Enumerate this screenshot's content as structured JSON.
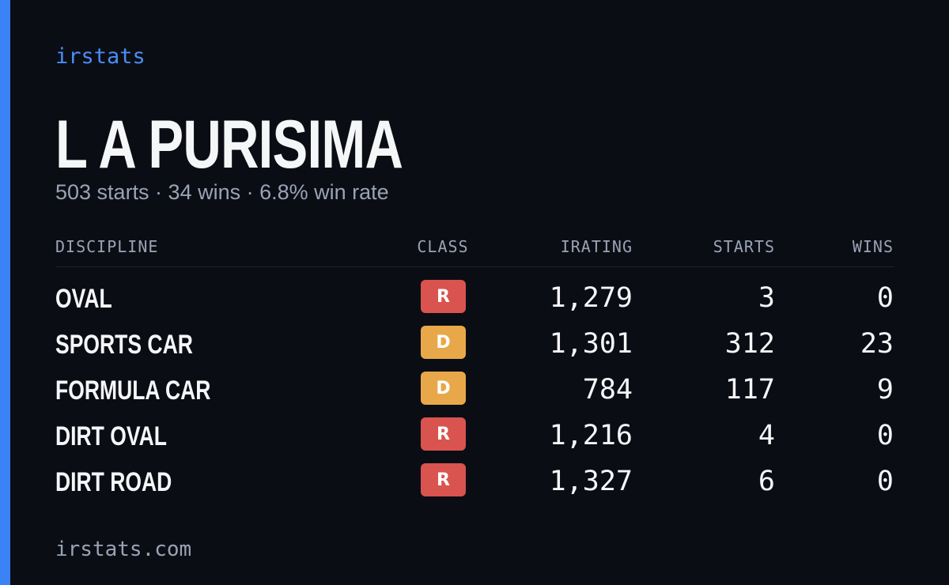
{
  "brand": "irstats",
  "title": "L A PURISIMA",
  "subtitle": "503 starts · 34 wins · 6.8% win rate",
  "table": {
    "headers": [
      "DISCIPLINE",
      "CLASS",
      "IRATING",
      "STARTS",
      "WINS"
    ],
    "rows": [
      {
        "discipline": "OVAL",
        "class": "R",
        "class_color": "#d9534f",
        "irating": "1,279",
        "starts": "3",
        "wins": "0"
      },
      {
        "discipline": "SPORTS CAR",
        "class": "D",
        "class_color": "#e8a84a",
        "irating": "1,301",
        "starts": "312",
        "wins": "23"
      },
      {
        "discipline": "FORMULA CAR",
        "class": "D",
        "class_color": "#e8a84a",
        "irating": "784",
        "starts": "117",
        "wins": "9"
      },
      {
        "discipline": "DIRT OVAL",
        "class": "R",
        "class_color": "#d9534f",
        "irating": "1,216",
        "starts": "4",
        "wins": "0"
      },
      {
        "discipline": "DIRT ROAD",
        "class": "R",
        "class_color": "#d9534f",
        "irating": "1,327",
        "starts": "6",
        "wins": "0"
      }
    ]
  },
  "footer": "irstats.com"
}
